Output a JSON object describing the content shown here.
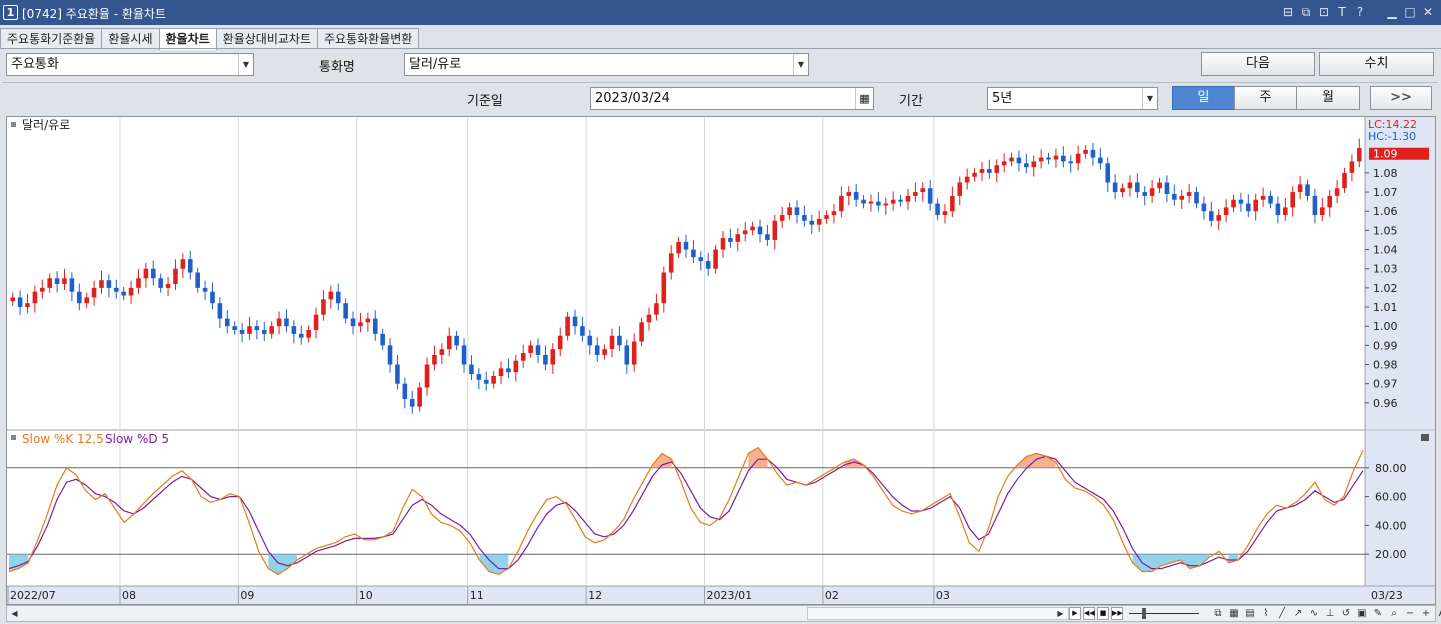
{
  "window": {
    "number": "1",
    "title": "[0742] 주요환율 - 환율차트",
    "controls": [
      "layout-icon",
      "restore-icon",
      "link-icon",
      "text-icon",
      "help-icon",
      "minimize-icon",
      "maximize-icon",
      "close-icon"
    ],
    "control_labels": {
      "text": "T",
      "help": "?"
    }
  },
  "tabs": [
    {
      "label": "주요통화기준환율",
      "active": false
    },
    {
      "label": "환율시세",
      "active": false
    },
    {
      "label": "환율차트",
      "active": true
    },
    {
      "label": "환율상대비교차트",
      "active": false
    },
    {
      "label": "주요통화환율변환",
      "active": false
    }
  ],
  "form": {
    "category_value": "주요통화",
    "currency_label": "통화명",
    "currency_value": "달러/유로",
    "next_label": "다음",
    "value_label": "수치",
    "base_date_label": "기준일",
    "base_date_value": "2023/03/24",
    "period_label": "기간",
    "period_value": "5년",
    "intervals": [
      {
        "label": "일",
        "active": true
      },
      {
        "label": "주",
        "active": false
      },
      {
        "label": "월",
        "active": false
      }
    ],
    "forward_label": ">>"
  },
  "price_pane": {
    "title": "달러/유로",
    "lc_label": "LC:14.22",
    "hc_label": "HC:-1.30",
    "current_price": "1.09",
    "y_ticks": [
      "1.08",
      "1.07",
      "1.06",
      "1.05",
      "1.04",
      "1.03",
      "1.02",
      "1.01",
      "1.00",
      "0.99",
      "0.98",
      "0.97",
      "0.96"
    ]
  },
  "stoch_pane": {
    "k_label": "Slow %K 12,5",
    "d_label": "Slow %D 5",
    "y_ticks": [
      "80.00",
      "60.00",
      "40.00",
      "20.00"
    ],
    "upper_line": 80,
    "lower_line": 20
  },
  "x_axis": {
    "labels": [
      "2022/07",
      "08",
      "09",
      "10",
      "11",
      "12",
      "2023/01",
      "02",
      "03"
    ],
    "end_label": "03/23"
  },
  "colors": {
    "up": "#e0201b",
    "down": "#1f5fc8",
    "k_line": "#e8791a",
    "d_line": "#7a1fa0",
    "over_fill": "#f2a57e",
    "under_fill": "#7fcbe8",
    "title_bar": "#35558f"
  },
  "chart_data": [
    {
      "type": "candlestick",
      "title": "달러/유로",
      "x_labels": [
        "2022/07",
        "08",
        "09",
        "10",
        "11",
        "12",
        "2023/01",
        "02",
        "03",
        "03/23"
      ],
      "y_range": [
        0.95,
        1.105
      ],
      "close": [
        1.015,
        1.01,
        1.012,
        1.018,
        1.02,
        1.025,
        1.022,
        1.025,
        1.018,
        1.012,
        1.015,
        1.02,
        1.024,
        1.02,
        1.018,
        1.016,
        1.02,
        1.025,
        1.03,
        1.025,
        1.02,
        1.022,
        1.03,
        1.035,
        1.028,
        1.02,
        1.018,
        1.012,
        1.004,
        1.0,
        0.998,
        0.996,
        1.0,
        0.998,
        0.996,
        1.0,
        1.004,
        1.0,
        0.996,
        0.994,
        0.998,
        1.006,
        1.014,
        1.018,
        1.012,
        1.004,
        1.0,
        1.002,
        1.004,
        0.996,
        0.99,
        0.98,
        0.97,
        0.962,
        0.958,
        0.968,
        0.98,
        0.985,
        0.988,
        0.995,
        0.99,
        0.98,
        0.975,
        0.972,
        0.97,
        0.974,
        0.978,
        0.976,
        0.982,
        0.986,
        0.99,
        0.985,
        0.98,
        0.988,
        0.995,
        1.005,
        1.0,
        0.995,
        0.99,
        0.985,
        0.988,
        0.995,
        0.99,
        0.98,
        0.992,
        1.002,
        1.006,
        1.012,
        1.028,
        1.038,
        1.044,
        1.04,
        1.036,
        1.034,
        1.03,
        1.04,
        1.046,
        1.044,
        1.048,
        1.05,
        1.052,
        1.048,
        1.045,
        1.055,
        1.058,
        1.062,
        1.058,
        1.055,
        1.053,
        1.056,
        1.058,
        1.06,
        1.068,
        1.07,
        1.066,
        1.064,
        1.065,
        1.063,
        1.064,
        1.066,
        1.065,
        1.068,
        1.07,
        1.072,
        1.064,
        1.058,
        1.06,
        1.068,
        1.075,
        1.078,
        1.08,
        1.082,
        1.08,
        1.084,
        1.086,
        1.088,
        1.085,
        1.083,
        1.086,
        1.088,
        1.087,
        1.089,
        1.086,
        1.085,
        1.09,
        1.092,
        1.088,
        1.085,
        1.075,
        1.07,
        1.072,
        1.075,
        1.07,
        1.068,
        1.072,
        1.075,
        1.069,
        1.066,
        1.068,
        1.07,
        1.064,
        1.06,
        1.055,
        1.058,
        1.062,
        1.066,
        1.064,
        1.06,
        1.066,
        1.068,
        1.064,
        1.058,
        1.062,
        1.07,
        1.074,
        1.068,
        1.058,
        1.062,
        1.068,
        1.072,
        1.08,
        1.086,
        1.093
      ]
    },
    {
      "type": "line",
      "title": "",
      "series": [
        {
          "name": "Slow %K 12,5",
          "values": [
            8,
            10,
            14,
            30,
            48,
            68,
            80,
            75,
            64,
            58,
            62,
            52,
            42,
            48,
            55,
            62,
            68,
            74,
            78,
            72,
            60,
            56,
            58,
            62,
            60,
            42,
            22,
            10,
            6,
            10,
            16,
            20,
            24,
            26,
            28,
            32,
            34,
            30,
            30,
            32,
            36,
            52,
            65,
            60,
            48,
            42,
            40,
            36,
            28,
            16,
            8,
            6,
            10,
            22,
            36,
            48,
            58,
            60,
            55,
            44,
            32,
            28,
            30,
            36,
            44,
            58,
            70,
            82,
            90,
            86,
            70,
            52,
            42,
            40,
            45,
            58,
            74,
            90,
            94,
            86,
            76,
            68,
            70,
            68,
            72,
            76,
            80,
            84,
            86,
            82,
            74,
            64,
            54,
            50,
            48,
            50,
            54,
            58,
            62,
            46,
            28,
            22,
            38,
            60,
            74,
            82,
            88,
            90,
            88,
            84,
            72,
            66,
            64,
            60,
            54,
            44,
            28,
            14,
            8,
            8,
            12,
            14,
            16,
            10,
            12,
            18,
            22,
            14,
            16,
            26,
            38,
            48,
            54,
            52,
            56,
            62,
            70,
            58,
            54,
            60,
            78,
            92
          ]
        },
        {
          "name": "Slow %D 5",
          "values": [
            10,
            12,
            15,
            26,
            40,
            58,
            70,
            72,
            68,
            62,
            60,
            56,
            50,
            48,
            52,
            58,
            64,
            70,
            74,
            72,
            66,
            60,
            58,
            60,
            60,
            50,
            36,
            22,
            14,
            12,
            14,
            18,
            22,
            24,
            26,
            29,
            31,
            31,
            31,
            32,
            34,
            44,
            54,
            58,
            54,
            48,
            44,
            40,
            34,
            24,
            16,
            10,
            10,
            16,
            26,
            38,
            48,
            54,
            56,
            50,
            42,
            34,
            32,
            34,
            40,
            50,
            62,
            74,
            82,
            84,
            76,
            64,
            52,
            46,
            44,
            50,
            64,
            78,
            86,
            86,
            80,
            72,
            70,
            68,
            70,
            74,
            78,
            82,
            84,
            82,
            76,
            68,
            60,
            54,
            50,
            50,
            52,
            56,
            60,
            52,
            38,
            30,
            34,
            48,
            62,
            72,
            80,
            86,
            88,
            86,
            78,
            70,
            66,
            62,
            58,
            50,
            38,
            24,
            14,
            10,
            10,
            12,
            14,
            12,
            12,
            15,
            18,
            16,
            16,
            22,
            32,
            42,
            50,
            52,
            54,
            58,
            64,
            60,
            56,
            58,
            68,
            78
          ]
        }
      ],
      "y_range": [
        0,
        100
      ],
      "reference_lines": [
        20,
        80
      ]
    }
  ]
}
